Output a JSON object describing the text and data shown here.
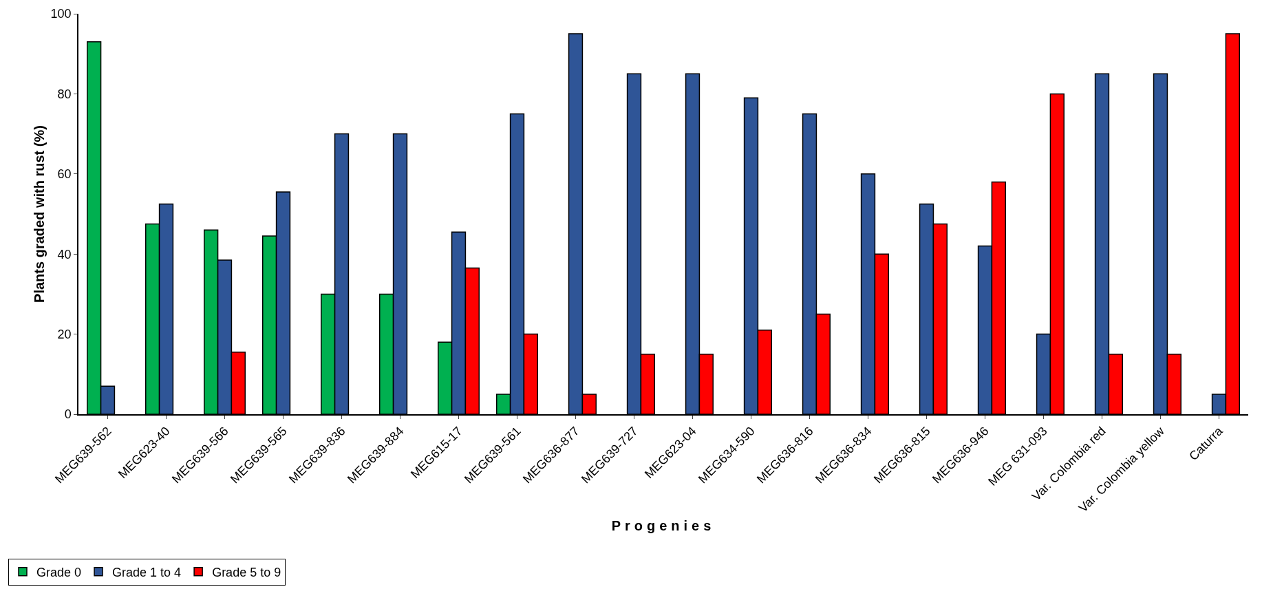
{
  "chart_data": {
    "type": "bar",
    "xlabel": "Progenies",
    "ylabel": "Plants graded with rust (%)",
    "categories": [
      "MEG639-562",
      "MEG623-40",
      "MEG639-566",
      "MEG639-565",
      "MEG639-836",
      "MEG639-884",
      "MEG615-17",
      "MEG639-561",
      "MEG636-877",
      "MEG639-727",
      "MEG623-04",
      "MEG634-590",
      "MEG636-816",
      "MEG636-834",
      "MEG636-815",
      "MEG636-946",
      "MEG 631-093",
      "Var. Colombia red",
      "Var. Colombia yellow",
      "Caturra"
    ],
    "series": [
      {
        "name": "Grade 0",
        "color": "#00b050",
        "values": [
          93,
          47.5,
          46,
          44.5,
          30,
          30,
          18,
          5,
          null,
          null,
          null,
          null,
          null,
          null,
          null,
          null,
          null,
          null,
          null,
          null
        ]
      },
      {
        "name": "Grade 1 to 4",
        "color": "#2f5597",
        "values": [
          7,
          52.5,
          38.5,
          55.5,
          70,
          70,
          45.5,
          75,
          95,
          85,
          85,
          79,
          75,
          60,
          52.5,
          42,
          20,
          85,
          85,
          5
        ]
      },
      {
        "name": "Grade 5 to 9",
        "color": "#ff0000",
        "values": [
          null,
          null,
          15.5,
          null,
          null,
          null,
          36.5,
          20,
          5,
          15,
          15,
          21,
          25,
          40,
          47.5,
          58,
          80,
          15,
          15,
          95
        ]
      }
    ],
    "ylim": [
      0,
      100
    ],
    "yticks": [
      0,
      20,
      40,
      60,
      80,
      100
    ],
    "grid": false,
    "legend": "bottom left"
  }
}
